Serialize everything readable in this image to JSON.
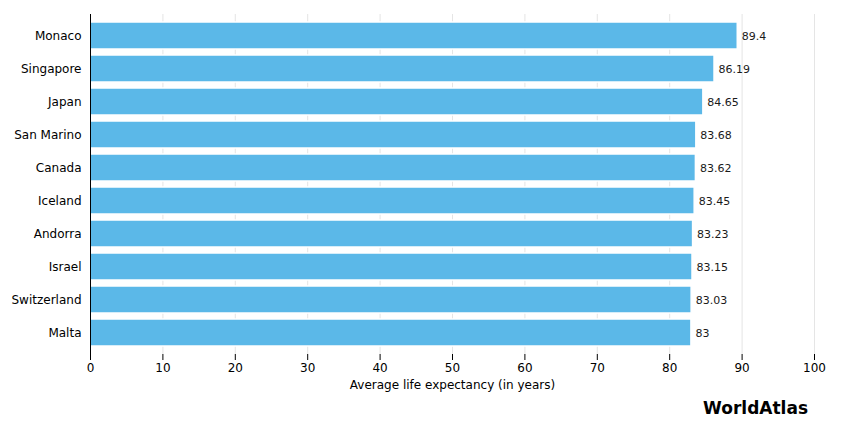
{
  "chart_data": {
    "type": "bar",
    "orientation": "horizontal",
    "categories": [
      "Malta",
      "Switzerland",
      "Israel",
      "Andorra",
      "Iceland",
      "Canada",
      "San Marino",
      "Japan",
      "Singapore",
      "Monaco"
    ],
    "values": [
      83,
      83.03,
      83.15,
      83.23,
      83.45,
      83.62,
      83.68,
      84.65,
      86.19,
      89.4
    ],
    "color": "#5BB8E8",
    "xlabel": "Average life expectancy (in years)",
    "xlim": [
      0,
      100
    ],
    "xticks": [
      0,
      10,
      20,
      30,
      40,
      50,
      60,
      70,
      80,
      90,
      100
    ],
    "grid": true,
    "data_labels": true,
    "annotations": [
      "WorldAtlas"
    ]
  }
}
